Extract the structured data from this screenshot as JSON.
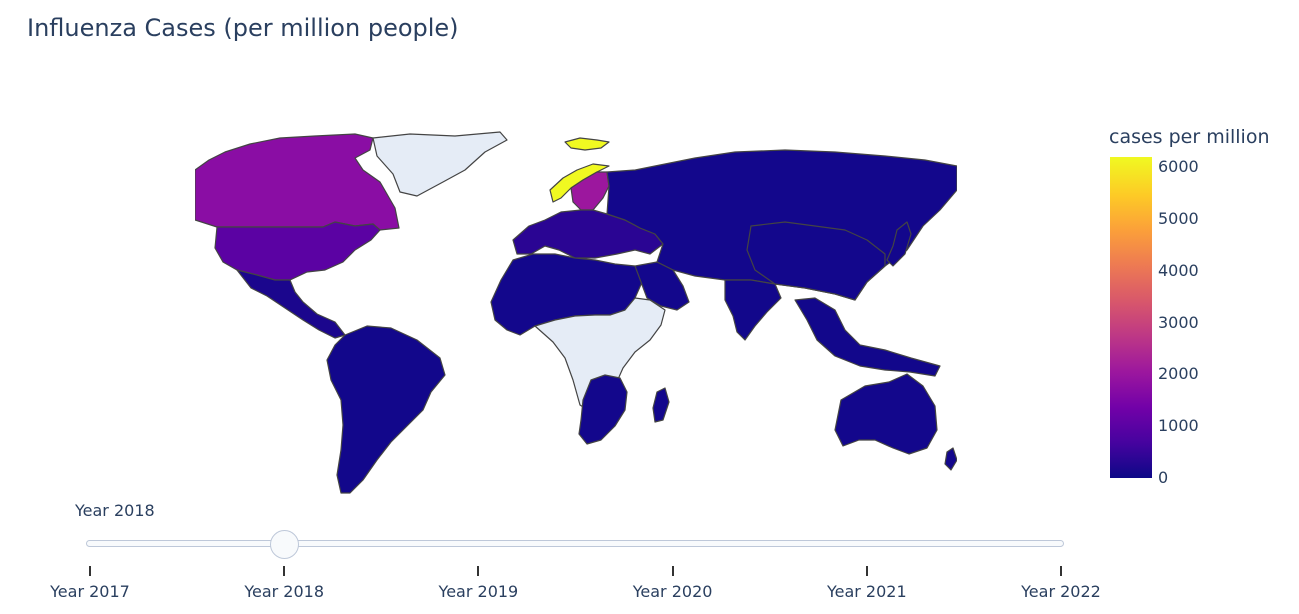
{
  "title": "Influenza Cases (per million people)",
  "colorbar": {
    "title": "cases per million",
    "ticks": [
      "0",
      "1000",
      "2000",
      "3000",
      "4000",
      "5000",
      "6000"
    ],
    "tick_values": [
      0,
      1000,
      2000,
      3000,
      4000,
      5000,
      6000
    ],
    "max": 6200,
    "colorscale": [
      "#0d0887",
      "#46039f",
      "#7201a8",
      "#9c179e",
      "#bd3786",
      "#d8576b",
      "#ed7953",
      "#fb9f3a",
      "#fdca26",
      "#f0f921"
    ]
  },
  "slider": {
    "current_label": "Year 2018",
    "steps": [
      "Year 2017",
      "Year 2018",
      "Year 2019",
      "Year 2020",
      "Year 2021",
      "Year 2022"
    ],
    "active_index": 1
  },
  "map": {
    "no_data_color": "#e5ecf6",
    "border_color": "#444444",
    "regions": [
      {
        "name": "Canada",
        "color": "#8a0da4"
      },
      {
        "name": "Greenland",
        "color": "#e5ecf6"
      },
      {
        "name": "United States",
        "color": "#5b02a3"
      },
      {
        "name": "Mexico / Central America",
        "color": "#1b068d"
      },
      {
        "name": "South America",
        "color": "#12078b"
      },
      {
        "name": "Norway",
        "color": "#f0f921"
      },
      {
        "name": "Sweden",
        "color": "#9c179e"
      },
      {
        "name": "Western Europe",
        "color": "#2a0593"
      },
      {
        "name": "Russia / Asia",
        "color": "#13078c"
      },
      {
        "name": "North Africa",
        "color": "#13078c"
      },
      {
        "name": "Central Africa",
        "color": "#e5ecf6"
      },
      {
        "name": "Southern Africa",
        "color": "#13078c"
      },
      {
        "name": "Arabia",
        "color": "#13078c"
      },
      {
        "name": "India",
        "color": "#12078b"
      },
      {
        "name": "China",
        "color": "#13078c"
      },
      {
        "name": "Southeast Asia",
        "color": "#12078b"
      },
      {
        "name": "Australia",
        "color": "#13078c"
      }
    ]
  }
}
